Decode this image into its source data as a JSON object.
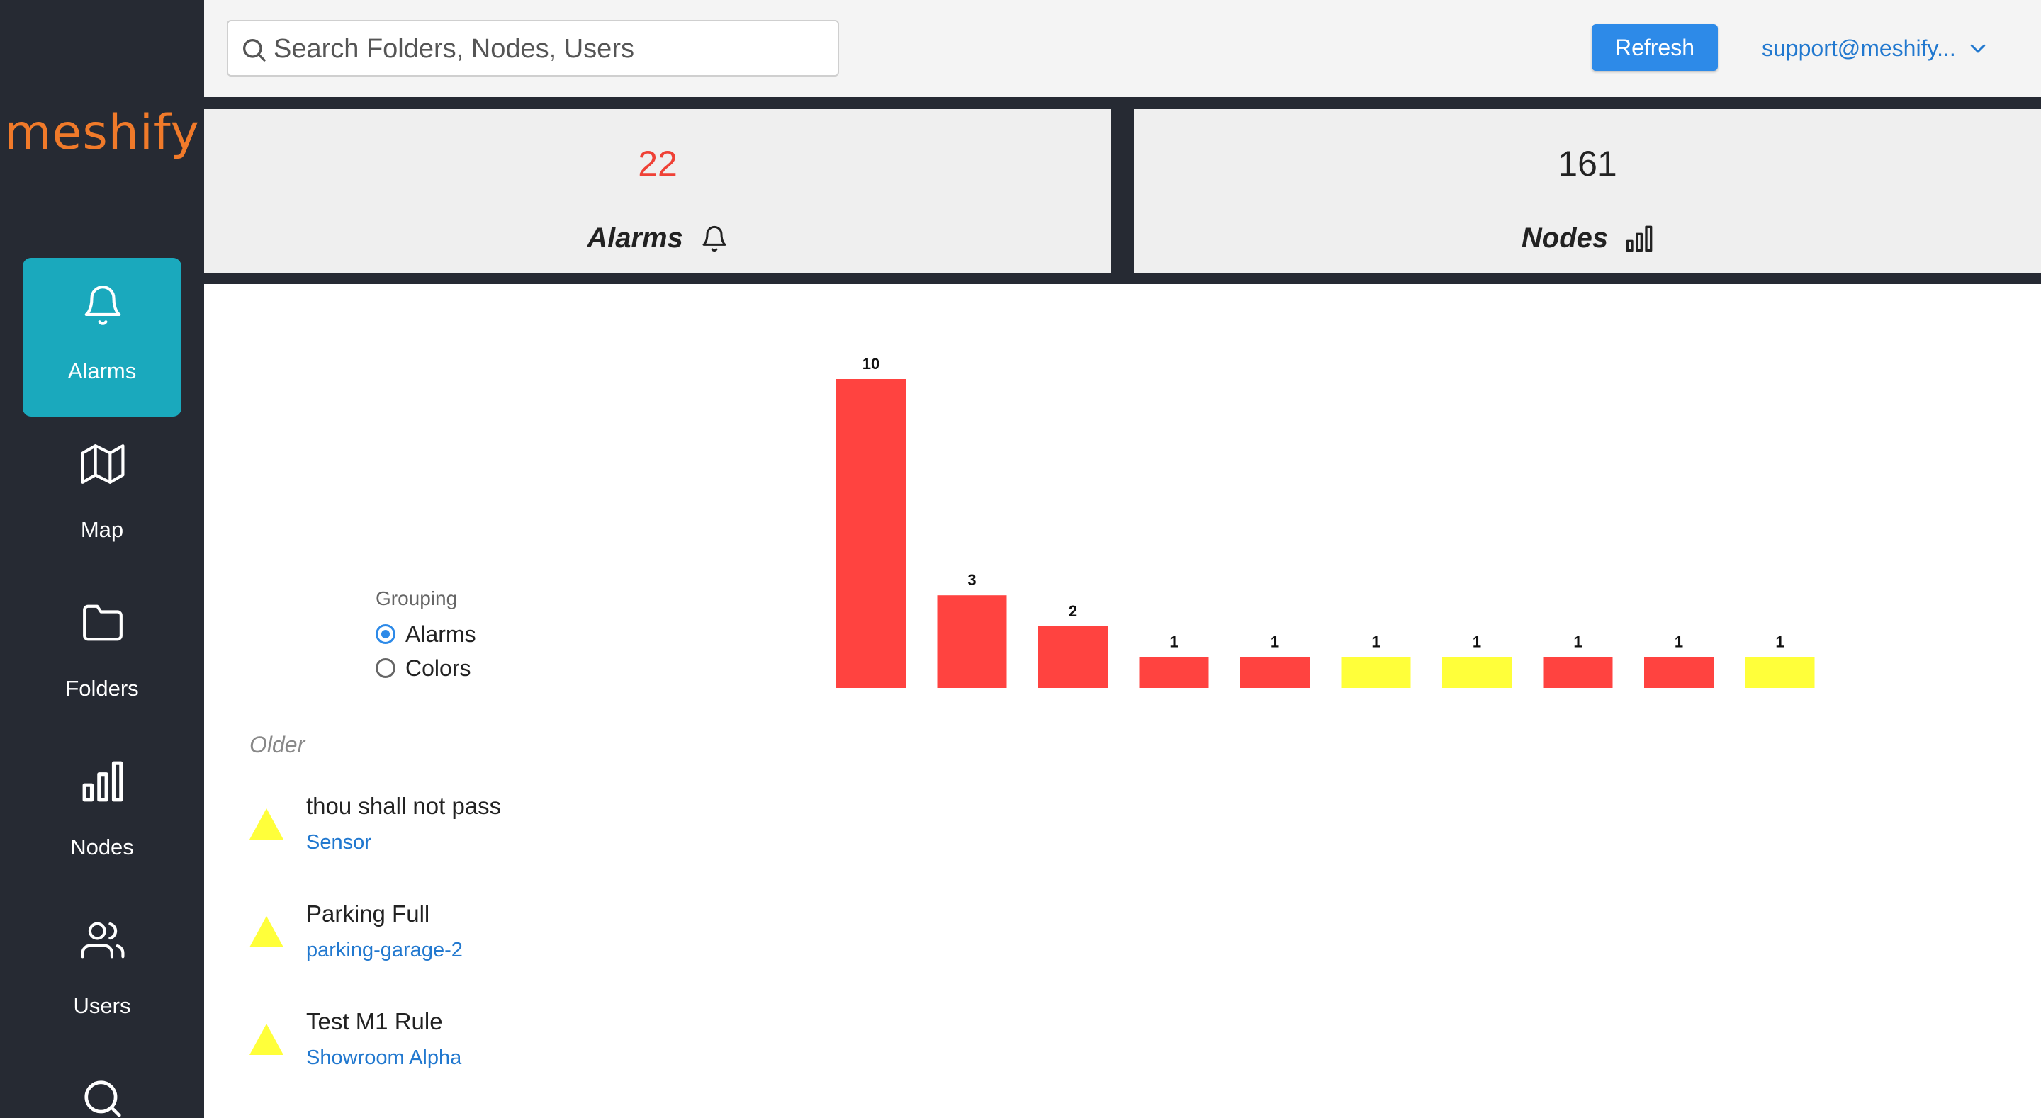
{
  "brand": {
    "logo_text": "meshify",
    "logo_color": "#f07a2a"
  },
  "sidebar": {
    "items": [
      {
        "label": "Alarms",
        "icon": "bell-icon",
        "active": true
      },
      {
        "label": "Map",
        "icon": "map-icon",
        "active": false
      },
      {
        "label": "Folders",
        "icon": "folder-icon",
        "active": false
      },
      {
        "label": "Nodes",
        "icon": "bar-chart-icon",
        "active": false
      },
      {
        "label": "Users",
        "icon": "users-icon",
        "active": false
      },
      {
        "label": "",
        "icon": "search-icon",
        "active": false
      }
    ],
    "active_color": "#1aa9bd"
  },
  "header": {
    "search_placeholder": "Search Folders, Nodes, Users",
    "refresh_label": "Refresh",
    "user_label": "support@meshify..."
  },
  "stats": {
    "alarms": {
      "value": "22",
      "label": "Alarms",
      "value_color": "#ef4136"
    },
    "nodes": {
      "value": "161",
      "label": "Nodes"
    }
  },
  "grouping": {
    "title": "Grouping",
    "options": [
      "Alarms",
      "Colors"
    ],
    "selected": "Alarms"
  },
  "chart_data": {
    "type": "bar",
    "values": [
      10,
      3,
      2,
      1,
      1,
      1,
      1,
      1,
      1,
      1
    ],
    "colors": [
      "#ff4340",
      "#ff4340",
      "#ff4340",
      "#ff4340",
      "#ff4340",
      "#ffff3a",
      "#ffff3a",
      "#ff4340",
      "#ff4340",
      "#ffff3a"
    ],
    "ylim": [
      0,
      10
    ],
    "grid": false
  },
  "alarm_list": {
    "section_title": "Older",
    "items": [
      {
        "title": "thou shall not pass",
        "node": "Sensor",
        "severity_color": "#ffff3a"
      },
      {
        "title": "Parking Full",
        "node": "parking-garage-2",
        "severity_color": "#ffff3a"
      },
      {
        "title": "Test M1 Rule",
        "node": "Showroom Alpha",
        "severity_color": "#ffff3a"
      }
    ]
  }
}
